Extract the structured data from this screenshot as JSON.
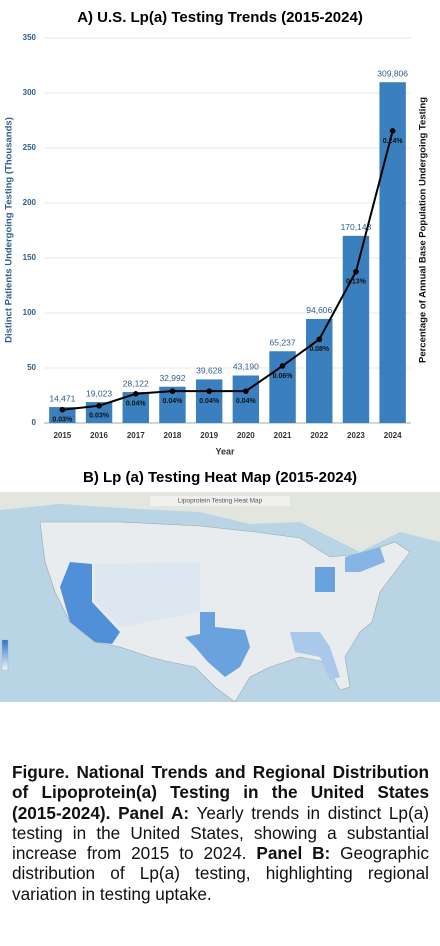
{
  "chart_data": {
    "type": "bar",
    "title": "A) U.S. Lp(a) Testing Trends (2015-2024)",
    "x_label": "Year",
    "y_label": "Distinct Patients Undergoing Testing (Thousands)",
    "y2_label": "Percentage of Annual Base Population Undergoing Testing",
    "categories": [
      "2015",
      "2016",
      "2017",
      "2018",
      "2019",
      "2020",
      "2021",
      "2022",
      "2023",
      "2024"
    ],
    "series": [
      {
        "type": "bar",
        "color": "#3a80bf",
        "values": [
          14.471,
          19.023,
          28.122,
          32.992,
          39.628,
          43.19,
          65.237,
          94.606,
          170.143,
          309.806
        ],
        "value_labels": [
          "14,471",
          "19,023",
          "28,122",
          "32,992",
          "39,628",
          "43,190",
          "65,237",
          "94,606",
          "170,143",
          "309,806"
        ]
      },
      {
        "type": "line",
        "axis": "y2",
        "color": "#000000",
        "values": [
          0.03,
          0.033,
          0.042,
          0.044,
          0.044,
          0.044,
          0.063,
          0.083,
          0.134,
          0.24
        ],
        "value_labels": [
          "0.03%",
          "0.03%",
          "0.04%",
          "0.04%",
          "0.04%",
          "0.04%",
          "0.06%",
          "0.08%",
          "0.13%",
          "0.24%"
        ]
      }
    ],
    "ylim": [
      0,
      350
    ],
    "yticks": [
      0,
      50,
      100,
      150,
      200,
      250,
      300,
      350
    ],
    "y2lim": [
      0.02,
      0.31
    ],
    "grid": true
  },
  "map": {
    "title": "B) Lp (a) Testing Heat Map (2015-2024)",
    "inner_title": "Lipoprotein Testing Heat Map"
  },
  "caption": {
    "title": "Figure. National Trends and Regional Distribution of Lipoprotein(a) Testing in the United States (2015-2024).",
    "panel_a_label": "Panel A:",
    "panel_a_text": "Yearly trends in distinct Lp(a) testing in the United States, showing a substantial increase from 2015 to 2024.",
    "panel_b_label": "Panel B:",
    "panel_b_text": "Geographic distribution of Lp(a) testing, highlighting regional variation in testing uptake."
  }
}
